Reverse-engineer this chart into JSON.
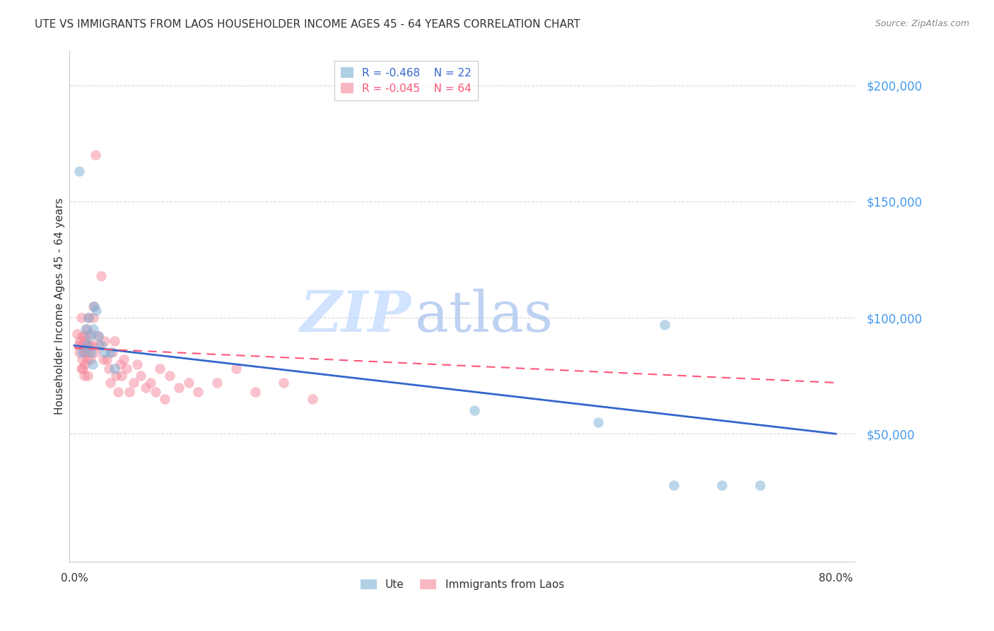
{
  "title": "UTE VS IMMIGRANTS FROM LAOS HOUSEHOLDER INCOME AGES 45 - 64 YEARS CORRELATION CHART",
  "source": "Source: ZipAtlas.com",
  "ylabel": "Householder Income Ages 45 - 64 years",
  "ytick_labels": [
    "$50,000",
    "$100,000",
    "$150,000",
    "$200,000"
  ],
  "ytick_values": [
    50000,
    100000,
    150000,
    200000
  ],
  "ylim": [
    -5000,
    215000
  ],
  "xlim": [
    -0.005,
    0.82
  ],
  "ute_color": "#7BAFD4",
  "laos_color": "#F4879A",
  "regression_ute_color": "#3366CC",
  "regression_laos_color": "#FF5577",
  "legend_r_ute": "R = -0.468",
  "legend_n_ute": "N = 22",
  "legend_r_laos": "R = -0.045",
  "legend_n_laos": "N = 64",
  "ute_x": [
    0.005,
    0.008,
    0.012,
    0.013,
    0.015,
    0.016,
    0.018,
    0.019,
    0.02,
    0.021,
    0.023,
    0.025,
    0.028,
    0.032,
    0.038,
    0.042,
    0.42,
    0.55,
    0.62,
    0.63,
    0.68,
    0.72
  ],
  "ute_y": [
    163000,
    85000,
    95000,
    88000,
    100000,
    92000,
    85000,
    80000,
    95000,
    105000,
    103000,
    92000,
    88000,
    85000,
    85000,
    78000,
    60000,
    55000,
    97000,
    28000,
    28000,
    28000
  ],
  "laos_x": [
    0.003,
    0.004,
    0.005,
    0.006,
    0.007,
    0.007,
    0.008,
    0.008,
    0.009,
    0.009,
    0.01,
    0.01,
    0.011,
    0.011,
    0.012,
    0.012,
    0.013,
    0.013,
    0.014,
    0.014,
    0.015,
    0.015,
    0.016,
    0.017,
    0.018,
    0.019,
    0.02,
    0.02,
    0.022,
    0.022,
    0.025,
    0.026,
    0.028,
    0.03,
    0.032,
    0.034,
    0.036,
    0.038,
    0.04,
    0.042,
    0.044,
    0.046,
    0.048,
    0.05,
    0.052,
    0.055,
    0.058,
    0.062,
    0.066,
    0.07,
    0.075,
    0.08,
    0.085,
    0.09,
    0.095,
    0.1,
    0.11,
    0.12,
    0.13,
    0.15,
    0.17,
    0.19,
    0.22,
    0.25
  ],
  "laos_y": [
    93000,
    88000,
    85000,
    90000,
    78000,
    100000,
    82000,
    92000,
    88000,
    78000,
    85000,
    75000,
    90000,
    80000,
    86000,
    92000,
    82000,
    95000,
    88000,
    75000,
    100000,
    85000,
    88000,
    82000,
    93000,
    88000,
    100000,
    105000,
    170000,
    85000,
    92000,
    88000,
    118000,
    82000,
    90000,
    82000,
    78000,
    72000,
    85000,
    90000,
    75000,
    68000,
    80000,
    75000,
    82000,
    78000,
    68000,
    72000,
    80000,
    75000,
    70000,
    72000,
    68000,
    78000,
    65000,
    75000,
    70000,
    72000,
    68000,
    72000,
    78000,
    68000,
    72000,
    65000
  ],
  "grid_color": "#CCCCCC",
  "tick_color": "#4499EE",
  "title_color": "#333333",
  "source_color": "#888888",
  "ylabel_color": "#333333"
}
